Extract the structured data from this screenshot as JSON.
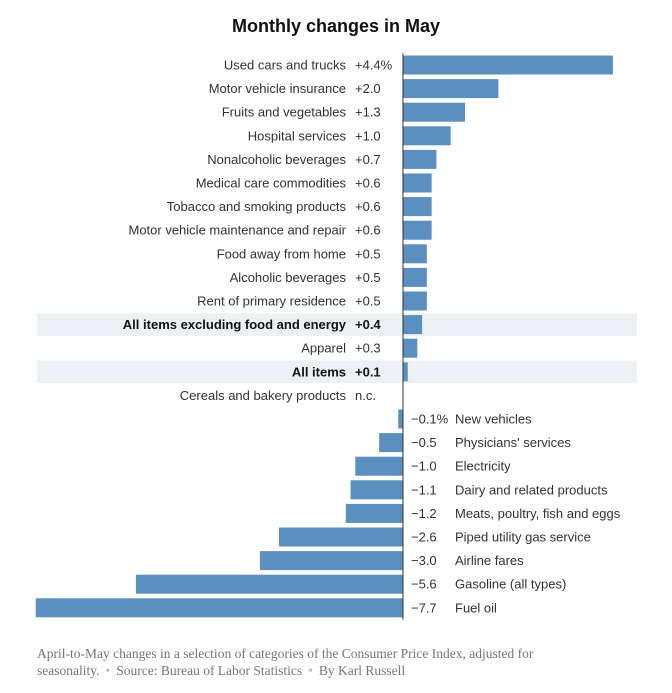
{
  "title": "Monthly changes in May",
  "chart_data": {
    "type": "bar",
    "orientation": "horizontal",
    "title": "Monthly changes in May",
    "unit": "%",
    "xlim": [
      -7.7,
      4.4
    ],
    "grid": false,
    "series": [
      {
        "name": "Used cars and trucks",
        "label": "+4.4%",
        "value": 4.4
      },
      {
        "name": "Motor vehicle insurance",
        "label": "+2.0",
        "value": 2.0
      },
      {
        "name": "Fruits and vegetables",
        "label": "+1.3",
        "value": 1.3
      },
      {
        "name": "Hospital services",
        "label": "+1.0",
        "value": 1.0
      },
      {
        "name": "Nonalcoholic beverages",
        "label": "+0.7",
        "value": 0.7
      },
      {
        "name": "Medical care commodities",
        "label": "+0.6",
        "value": 0.6
      },
      {
        "name": "Tobacco and smoking products",
        "label": "+0.6",
        "value": 0.6
      },
      {
        "name": "Motor vehicle maintenance and repair",
        "label": "+0.6",
        "value": 0.6
      },
      {
        "name": "Food away from home",
        "label": "+0.5",
        "value": 0.5
      },
      {
        "name": "Alcoholic beverages",
        "label": "+0.5",
        "value": 0.5
      },
      {
        "name": "Rent of primary residence",
        "label": "+0.5",
        "value": 0.5
      },
      {
        "name": "All items excluding food and energy",
        "label": "+0.4",
        "value": 0.4,
        "highlight": true
      },
      {
        "name": "Apparel",
        "label": "+0.3",
        "value": 0.3
      },
      {
        "name": "All items",
        "label": "+0.1",
        "value": 0.1,
        "highlight": true
      },
      {
        "name": "Cereals and bakery products",
        "label": "n.c.",
        "value": 0
      },
      {
        "name": "New vehicles",
        "label": "−0.1%",
        "value": -0.1
      },
      {
        "name": "Physicians' services",
        "label": "−0.5",
        "value": -0.5
      },
      {
        "name": "Electricity",
        "label": "−1.0",
        "value": -1.0
      },
      {
        "name": "Dairy and related products",
        "label": "−1.1",
        "value": -1.1
      },
      {
        "name": "Meats, poultry, fish and eggs",
        "label": "−1.2",
        "value": -1.2
      },
      {
        "name": "Piped utility gas service",
        "label": "−2.6",
        "value": -2.6
      },
      {
        "name": "Airline fares",
        "label": "−3.0",
        "value": -3.0
      },
      {
        "name": "Gasoline (all types)",
        "label": "−5.6",
        "value": -5.6
      },
      {
        "name": "Fuel oil",
        "label": "−7.7",
        "value": -7.7
      }
    ]
  },
  "colors": {
    "bar": "#5b8fbf",
    "highlight_row": "#edf1f6",
    "axis": "#333333"
  },
  "footer": {
    "description": "April-to-May changes in a selection of categories of the Consumer Price Index, adjusted for seasonality.",
    "source": "Source: Bureau of Labor Statistics",
    "byline": "By Karl Russell"
  }
}
